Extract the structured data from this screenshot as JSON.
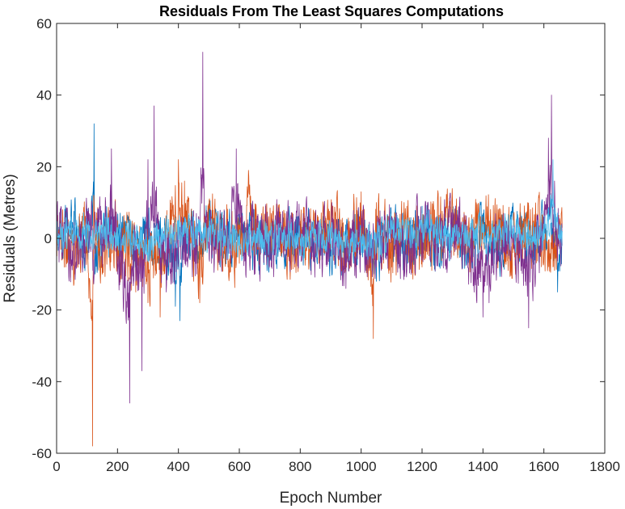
{
  "chart_data": {
    "type": "line",
    "title": "Residuals From The Least Squares Computations",
    "xlabel": "Epoch Number",
    "ylabel": "Residuals (Metres)",
    "xlim": [
      0,
      1800
    ],
    "ylim": [
      -60,
      60
    ],
    "xticks": [
      0,
      200,
      400,
      600,
      800,
      1000,
      1200,
      1400,
      1600,
      1800
    ],
    "yticks": [
      -60,
      -40,
      -20,
      0,
      20,
      40,
      60
    ],
    "grid": false,
    "legend": "none",
    "epochs": [
      1,
      1660
    ],
    "series": [
      {
        "color": "#0072BD",
        "points": [
          [
            1,
            -2
          ],
          [
            40,
            4
          ],
          [
            60,
            11
          ],
          [
            100,
            -4
          ],
          [
            123,
            32
          ],
          [
            126,
            -10
          ],
          [
            180,
            6
          ],
          [
            260,
            -8
          ],
          [
            300,
            5
          ],
          [
            360,
            -6
          ],
          [
            390,
            -19
          ],
          [
            405,
            -23
          ],
          [
            430,
            8
          ],
          [
            470,
            -6
          ],
          [
            500,
            9
          ],
          [
            560,
            -4
          ],
          [
            600,
            3
          ],
          [
            700,
            -3
          ],
          [
            800,
            4
          ],
          [
            900,
            -5
          ],
          [
            950,
            -9
          ],
          [
            1000,
            5
          ],
          [
            1050,
            -12
          ],
          [
            1100,
            6
          ],
          [
            1150,
            -8
          ],
          [
            1200,
            9
          ],
          [
            1250,
            -6
          ],
          [
            1300,
            5
          ],
          [
            1350,
            -7
          ],
          [
            1400,
            7
          ],
          [
            1450,
            -6
          ],
          [
            1500,
            4
          ],
          [
            1550,
            -7
          ],
          [
            1600,
            5
          ],
          [
            1630,
            8
          ],
          [
            1645,
            -15
          ],
          [
            1660,
            2
          ]
        ],
        "noise": 4
      },
      {
        "color": "#D95319",
        "points": [
          [
            1,
            -5
          ],
          [
            20,
            8
          ],
          [
            30,
            -8
          ],
          [
            60,
            -10
          ],
          [
            90,
            6
          ],
          [
            118,
            -58
          ],
          [
            122,
            12
          ],
          [
            150,
            -10
          ],
          [
            200,
            5
          ],
          [
            260,
            -15
          ],
          [
            300,
            -18
          ],
          [
            340,
            -22
          ],
          [
            380,
            10
          ],
          [
            400,
            22
          ],
          [
            420,
            16
          ],
          [
            450,
            -12
          ],
          [
            470,
            -18
          ],
          [
            500,
            8
          ],
          [
            560,
            -3
          ],
          [
            600,
            -7
          ],
          [
            630,
            19
          ],
          [
            650,
            -6
          ],
          [
            700,
            3
          ],
          [
            800,
            -3
          ],
          [
            900,
            6
          ],
          [
            950,
            -3
          ],
          [
            1000,
            13
          ],
          [
            1040,
            -28
          ],
          [
            1050,
            10
          ],
          [
            1100,
            -8
          ],
          [
            1150,
            9
          ],
          [
            1200,
            -8
          ],
          [
            1250,
            5
          ],
          [
            1300,
            10
          ],
          [
            1350,
            -4
          ],
          [
            1400,
            6
          ],
          [
            1450,
            8
          ],
          [
            1500,
            -3
          ],
          [
            1550,
            9
          ],
          [
            1600,
            -5
          ],
          [
            1630,
            -8
          ],
          [
            1660,
            3
          ]
        ],
        "noise": 5
      },
      {
        "color": "#7E2F8E",
        "points": [
          [
            1,
            4
          ],
          [
            50,
            -6
          ],
          [
            100,
            3
          ],
          [
            120,
            -6
          ],
          [
            180,
            25
          ],
          [
            200,
            -10
          ],
          [
            240,
            -46
          ],
          [
            260,
            -12
          ],
          [
            280,
            -37
          ],
          [
            300,
            22
          ],
          [
            320,
            37
          ],
          [
            340,
            -10
          ],
          [
            360,
            -15
          ],
          [
            400,
            -5
          ],
          [
            430,
            -8
          ],
          [
            460,
            -10
          ],
          [
            480,
            52
          ],
          [
            490,
            6
          ],
          [
            520,
            -3
          ],
          [
            560,
            -6
          ],
          [
            590,
            25
          ],
          [
            620,
            -4
          ],
          [
            700,
            -3
          ],
          [
            800,
            2
          ],
          [
            900,
            -3
          ],
          [
            950,
            -14
          ],
          [
            1000,
            3
          ],
          [
            1050,
            -8
          ],
          [
            1100,
            6
          ],
          [
            1150,
            -9
          ],
          [
            1200,
            5
          ],
          [
            1250,
            -5
          ],
          [
            1300,
            8
          ],
          [
            1350,
            -8
          ],
          [
            1380,
            -18
          ],
          [
            1400,
            -22
          ],
          [
            1420,
            -18
          ],
          [
            1450,
            -5
          ],
          [
            1500,
            3
          ],
          [
            1550,
            -25
          ],
          [
            1600,
            4
          ],
          [
            1615,
            28
          ],
          [
            1625,
            40
          ],
          [
            1635,
            16
          ],
          [
            1660,
            -2
          ]
        ],
        "noise": 5
      },
      {
        "color": "#4DBEEE",
        "points": [
          [
            1,
            2
          ],
          [
            60,
            3
          ],
          [
            100,
            4
          ],
          [
            200,
            3
          ],
          [
            300,
            -4
          ],
          [
            400,
            5
          ],
          [
            450,
            6
          ],
          [
            500,
            3
          ],
          [
            600,
            -2
          ],
          [
            700,
            2
          ],
          [
            800,
            -2
          ],
          [
            900,
            3
          ],
          [
            1000,
            -4
          ],
          [
            1100,
            5
          ],
          [
            1200,
            7
          ],
          [
            1300,
            3
          ],
          [
            1400,
            4
          ],
          [
            1500,
            5
          ],
          [
            1600,
            4
          ],
          [
            1630,
            22
          ],
          [
            1660,
            2
          ]
        ],
        "noise": 2.5
      }
    ]
  }
}
